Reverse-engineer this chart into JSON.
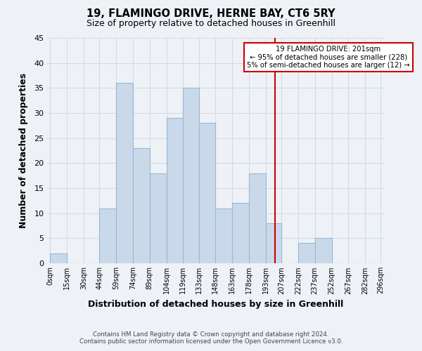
{
  "title": "19, FLAMINGO DRIVE, HERNE BAY, CT6 5RY",
  "subtitle": "Size of property relative to detached houses in Greenhill",
  "xlabel": "Distribution of detached houses by size in Greenhill",
  "ylabel": "Number of detached properties",
  "footer_line1": "Contains HM Land Registry data © Crown copyright and database right 2024.",
  "footer_line2": "Contains public sector information licensed under the Open Government Licence v3.0.",
  "annotation_line1": "19 FLAMINGO DRIVE: 201sqm",
  "annotation_line2": "← 95% of detached houses are smaller (228)",
  "annotation_line3": "5% of semi-detached houses are larger (12) →",
  "bar_left_edges": [
    0,
    15,
    30,
    44,
    59,
    74,
    89,
    104,
    119,
    133,
    148,
    163,
    178,
    193,
    207,
    222,
    237,
    252,
    267,
    282
  ],
  "bar_widths": [
    15,
    15,
    14,
    15,
    15,
    15,
    15,
    15,
    14,
    15,
    15,
    15,
    15,
    14,
    15,
    15,
    15,
    15,
    15,
    14
  ],
  "bar_heights": [
    2,
    0,
    0,
    11,
    36,
    23,
    18,
    29,
    35,
    28,
    11,
    12,
    18,
    8,
    0,
    4,
    5,
    0,
    0,
    0
  ],
  "bar_color": "#c9d9ea",
  "bar_edgecolor": "#9ab8d0",
  "grid_color": "#d0dce8",
  "vline_x": 201,
  "vline_color": "#cc0000",
  "annotation_box_edgecolor": "#cc0000",
  "xtick_labels": [
    "0sqm",
    "15sqm",
    "30sqm",
    "44sqm",
    "59sqm",
    "74sqm",
    "89sqm",
    "104sqm",
    "119sqm",
    "133sqm",
    "148sqm",
    "163sqm",
    "178sqm",
    "193sqm",
    "207sqm",
    "222sqm",
    "237sqm",
    "252sqm",
    "267sqm",
    "282sqm",
    "296sqm"
  ],
  "xtick_positions": [
    0,
    15,
    30,
    44,
    59,
    74,
    89,
    104,
    119,
    133,
    148,
    163,
    178,
    193,
    207,
    222,
    237,
    252,
    267,
    282,
    296
  ],
  "ylim": [
    0,
    45
  ],
  "xlim": [
    -3,
    299
  ],
  "yticks": [
    0,
    5,
    10,
    15,
    20,
    25,
    30,
    35,
    40,
    45
  ],
  "bg_color": "#eef2f7",
  "plot_bg_color": "#eef2f7"
}
